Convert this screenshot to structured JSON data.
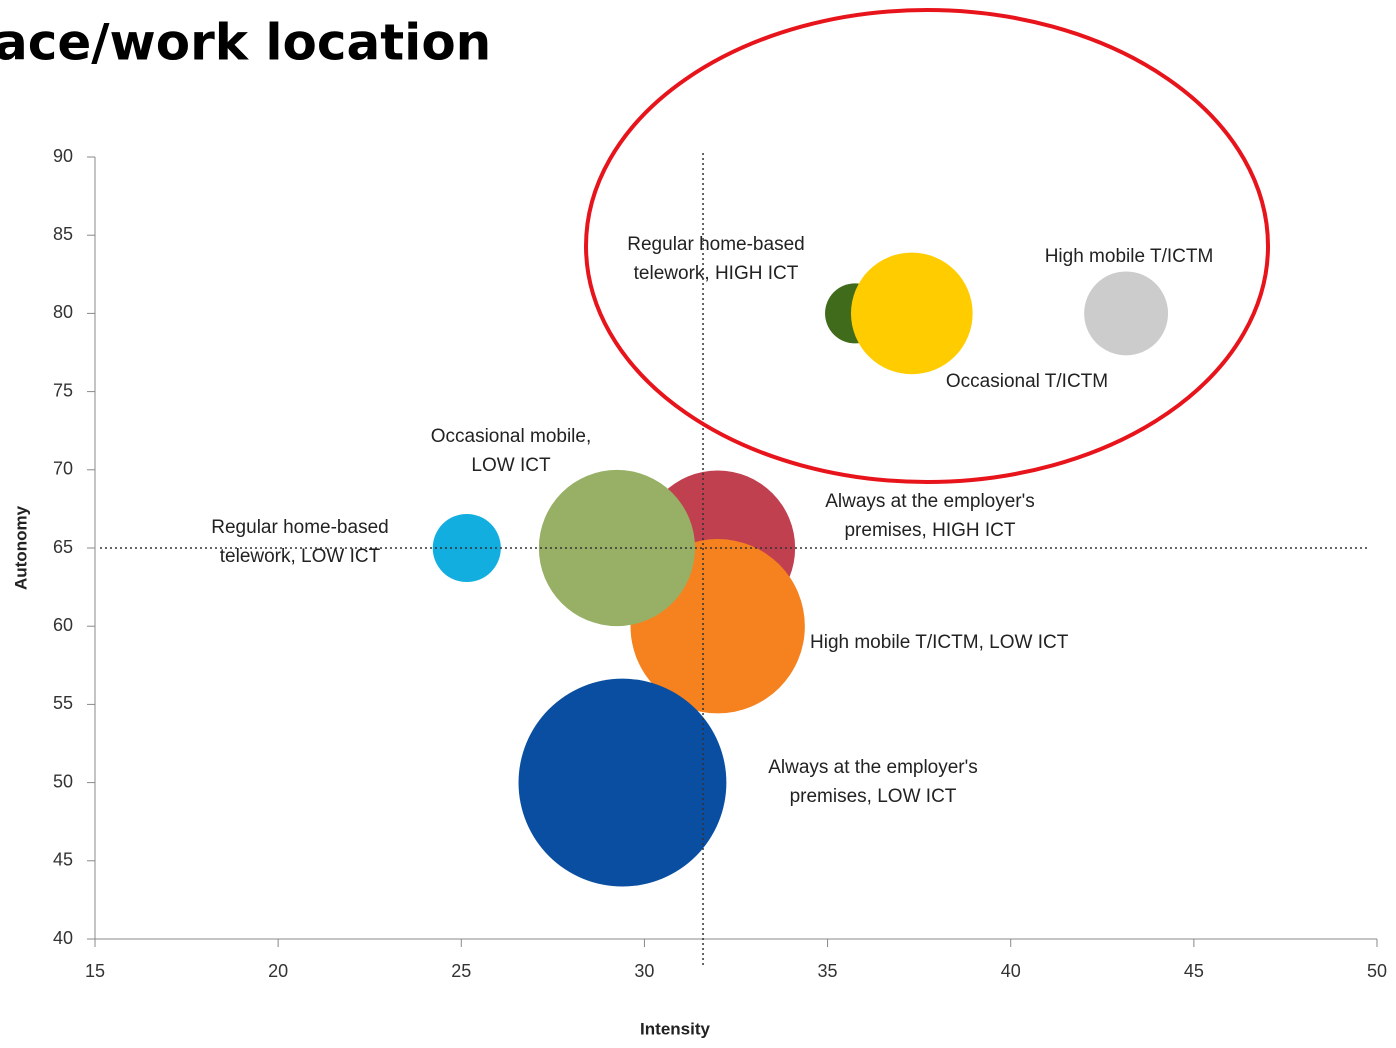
{
  "chart_data": {
    "type": "bubble",
    "title": "ace/work location",
    "x_label": "Intensity",
    "y_label": "Autonomy",
    "xlim": [
      15,
      50
    ],
    "ylim": [
      40,
      90
    ],
    "xticks": [
      15,
      20,
      25,
      30,
      35,
      40,
      45,
      50
    ],
    "yticks": [
      40,
      45,
      50,
      55,
      60,
      65,
      70,
      75,
      80,
      85,
      90
    ],
    "reference_lines": {
      "x": 31.6,
      "y": 65
    },
    "series": [
      {
        "name": [
          "Always at the employer's",
          "premises, HIGH ICT"
        ],
        "color": "#c0404f",
        "x": [
          32.0
        ],
        "values": [
          65
        ],
        "sizes": [
          60
        ]
      },
      {
        "name": [
          "High mobile T/ICTM, LOW ICT"
        ],
        "color": "#f5821f",
        "x": [
          32.0
        ],
        "values": [
          60
        ],
        "sizes": [
          76
        ]
      },
      {
        "name": [
          "Occasional mobile,",
          "LOW ICT"
        ],
        "color": "#97b065",
        "x": [
          29.25
        ],
        "values": [
          65
        ],
        "sizes": [
          61
        ]
      },
      {
        "name": [
          "Always at the employer's",
          "premises, LOW ICT"
        ],
        "color": "#0a4ea1",
        "x": [
          29.4
        ],
        "values": [
          50
        ],
        "sizes": [
          108
        ]
      },
      {
        "name": [
          "Regular home-based",
          "telework, LOW ICT"
        ],
        "color": "#12aee0",
        "x": [
          25.15
        ],
        "values": [
          65
        ],
        "sizes": [
          11.6
        ]
      },
      {
        "name": [
          "Regular home-based",
          "telework, HIGH ICT"
        ],
        "color": "#3f6b1a",
        "x": [
          35.75
        ],
        "values": [
          80
        ],
        "sizes": [
          9
        ]
      },
      {
        "name": [
          "Occasional T/ICTM"
        ],
        "color": "#ffcc00",
        "x": [
          37.3
        ],
        "values": [
          80
        ],
        "sizes": [
          37
        ]
      },
      {
        "name": [
          "High mobile T/ICTM"
        ],
        "color": "#cccccc",
        "x": [
          43.15
        ],
        "values": [
          80
        ],
        "sizes": [
          17.6
        ]
      }
    ]
  }
}
